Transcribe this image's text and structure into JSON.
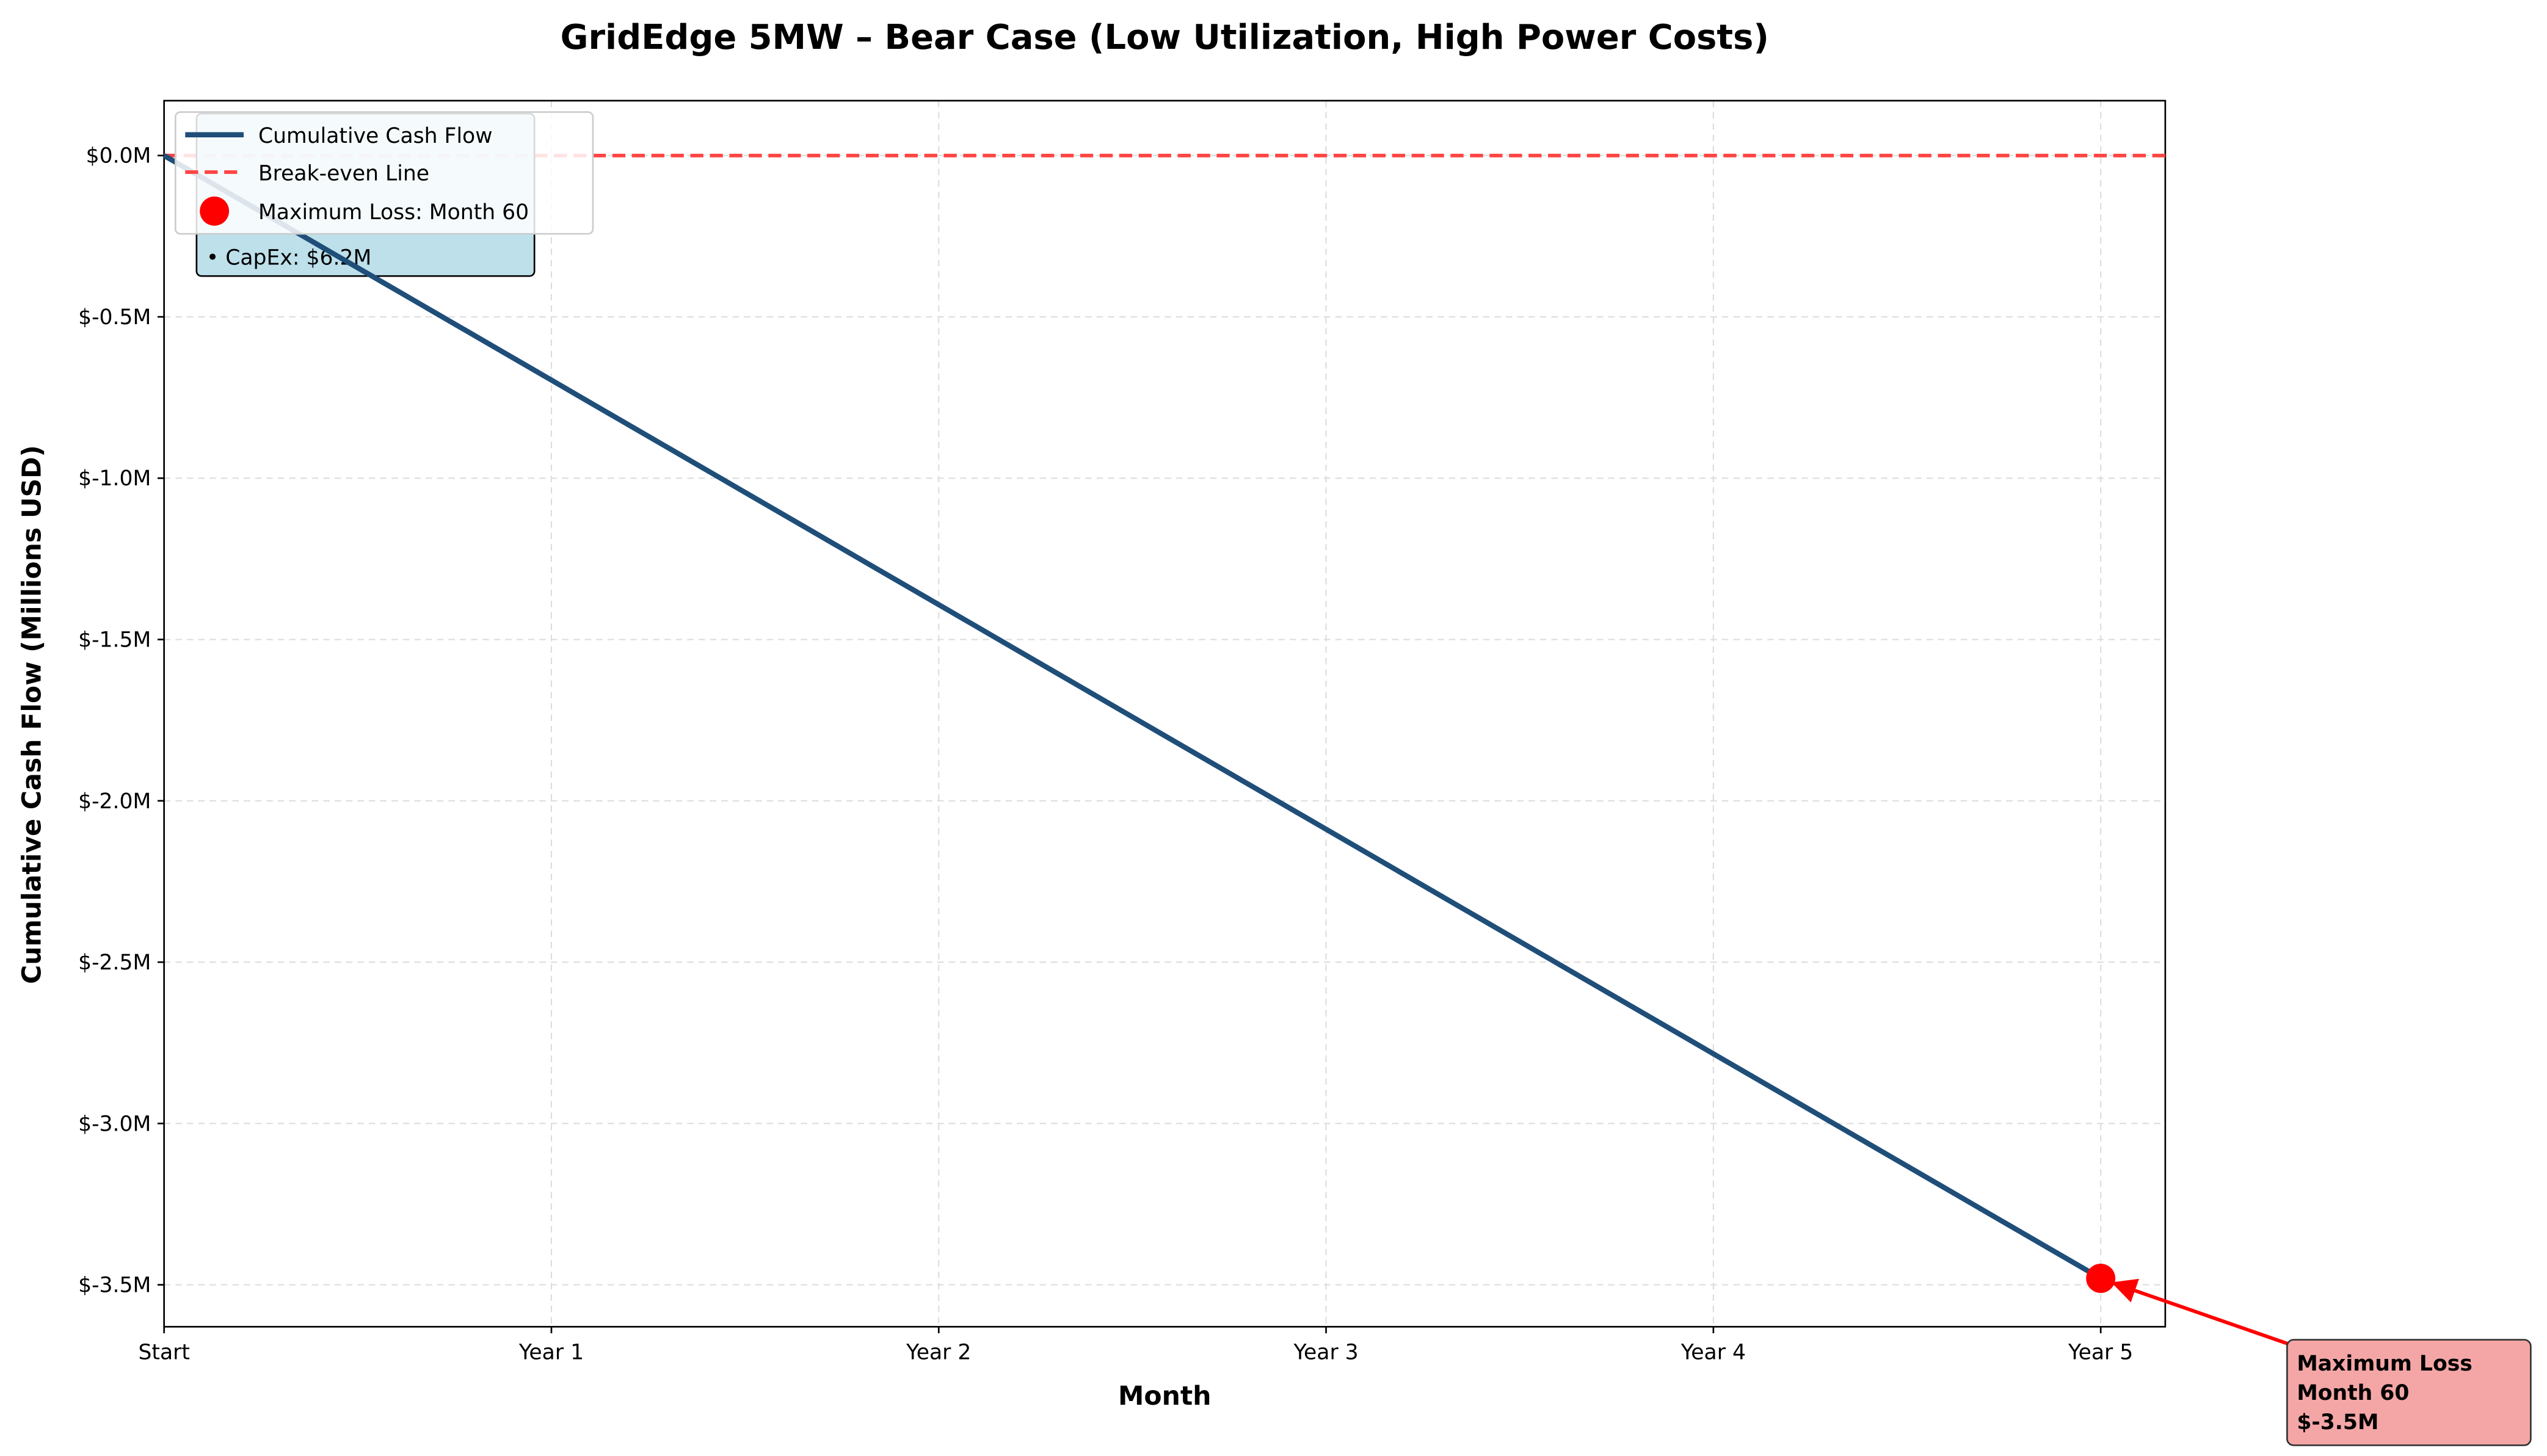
{
  "chart_data": {
    "type": "line",
    "title": "GridEdge 5MW – Bear Case (Low Utilization, High Power Costs)",
    "x_label": "Month",
    "y_label": "Cumulative Cash Flow (Millions USD)",
    "x": [
      0,
      1,
      2,
      3,
      4,
      5,
      6,
      7,
      8,
      9,
      10,
      11,
      12,
      13,
      14,
      15,
      16,
      17,
      18,
      19,
      20,
      21,
      22,
      23,
      24,
      25,
      26,
      27,
      28,
      29,
      30,
      31,
      32,
      33,
      34,
      35,
      36,
      37,
      38,
      39,
      40,
      41,
      42,
      43,
      44,
      45,
      46,
      47,
      48,
      49,
      50,
      51,
      52,
      53,
      54,
      55,
      56,
      57,
      58,
      59,
      60
    ],
    "series": [
      {
        "name": "Cumulative Cash Flow",
        "color": "#1f4e79",
        "values": [
          0,
          -0.058,
          -0.116,
          -0.174,
          -0.232,
          -0.29,
          -0.348,
          -0.406,
          -0.464,
          -0.522,
          -0.58,
          -0.638,
          -0.696,
          -0.754,
          -0.812,
          -0.87,
          -0.928,
          -0.986,
          -1.044,
          -1.102,
          -1.16,
          -1.218,
          -1.276,
          -1.334,
          -1.392,
          -1.45,
          -1.508,
          -1.566,
          -1.624,
          -1.682,
          -1.74,
          -1.798,
          -1.856,
          -1.914,
          -1.972,
          -2.03,
          -2.088,
          -2.146,
          -2.204,
          -2.262,
          -2.32,
          -2.378,
          -2.436,
          -2.494,
          -2.552,
          -2.61,
          -2.668,
          -2.726,
          -2.784,
          -2.842,
          -2.9,
          -2.958,
          -3.016,
          -3.074,
          -3.132,
          -3.19,
          -3.248,
          -3.306,
          -3.364,
          -3.422,
          -3.48
        ]
      }
    ],
    "reference_line": {
      "name": "Break-even Line",
      "value": 0,
      "color": "#ff4444"
    },
    "marker": {
      "name": "Maximum Loss: Month 60",
      "x": 60,
      "y": -3.48,
      "color": "#ff0000"
    },
    "annotation": {
      "lines": [
        "Maximum Loss",
        "Month 60",
        "$-3.5M"
      ],
      "color": "#ff0000"
    },
    "info_box": {
      "lines": [
        "• CapEx: $6.2M"
      ]
    },
    "xlim": [
      0,
      62
    ],
    "ylim": [
      -3.63,
      0.17
    ],
    "xticks": [
      {
        "value": 0,
        "label": "Start"
      },
      {
        "value": 12,
        "label": "Year 1"
      },
      {
        "value": 24,
        "label": "Year 2"
      },
      {
        "value": 36,
        "label": "Year 3"
      },
      {
        "value": 48,
        "label": "Year 4"
      },
      {
        "value": 60,
        "label": "Year 5"
      }
    ],
    "yticks": [
      {
        "value": 0,
        "label": "$0.0M"
      },
      {
        "value": -0.5,
        "label": "$-0.5M"
      },
      {
        "value": -1,
        "label": "$-1.0M"
      },
      {
        "value": -1.5,
        "label": "$-1.5M"
      },
      {
        "value": -2,
        "label": "$-2.0M"
      },
      {
        "value": -2.5,
        "label": "$-2.5M"
      },
      {
        "value": -3,
        "label": "$-3.0M"
      },
      {
        "value": -3.5,
        "label": "$-3.5M"
      }
    ],
    "grid": true,
    "legend": "upper left"
  }
}
